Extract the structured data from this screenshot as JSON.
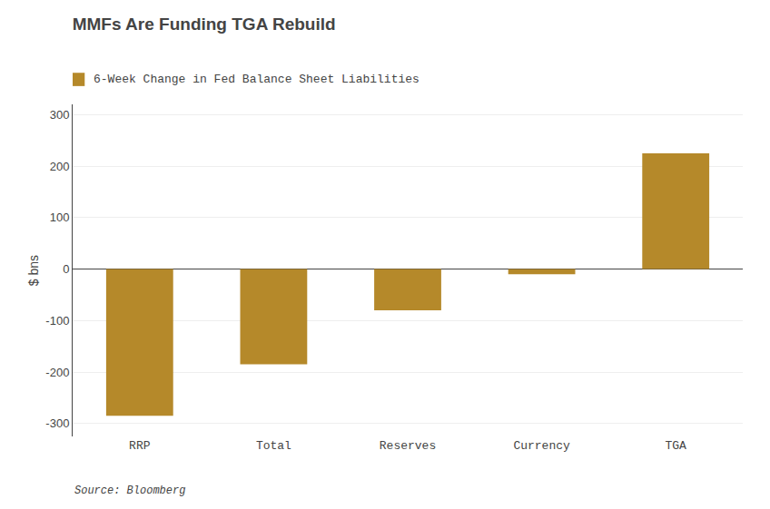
{
  "chart_data": {
    "type": "bar",
    "title": "MMFs Are Funding TGA Rebuild",
    "subtitle": "6-Week Change in Fed Balance Sheet Liabilities",
    "categories": [
      "RRP",
      "Total",
      "Reserves",
      "Currency",
      "TGA"
    ],
    "values": [
      -285,
      -185,
      -80,
      -10,
      225
    ],
    "color": "#B5892A",
    "ylabel": "$ bns",
    "ylim": [
      -325,
      320
    ],
    "yticks": [
      -300,
      -200,
      -100,
      0,
      100,
      200,
      300
    ],
    "source": "Source: Bloomberg",
    "grid": true
  }
}
